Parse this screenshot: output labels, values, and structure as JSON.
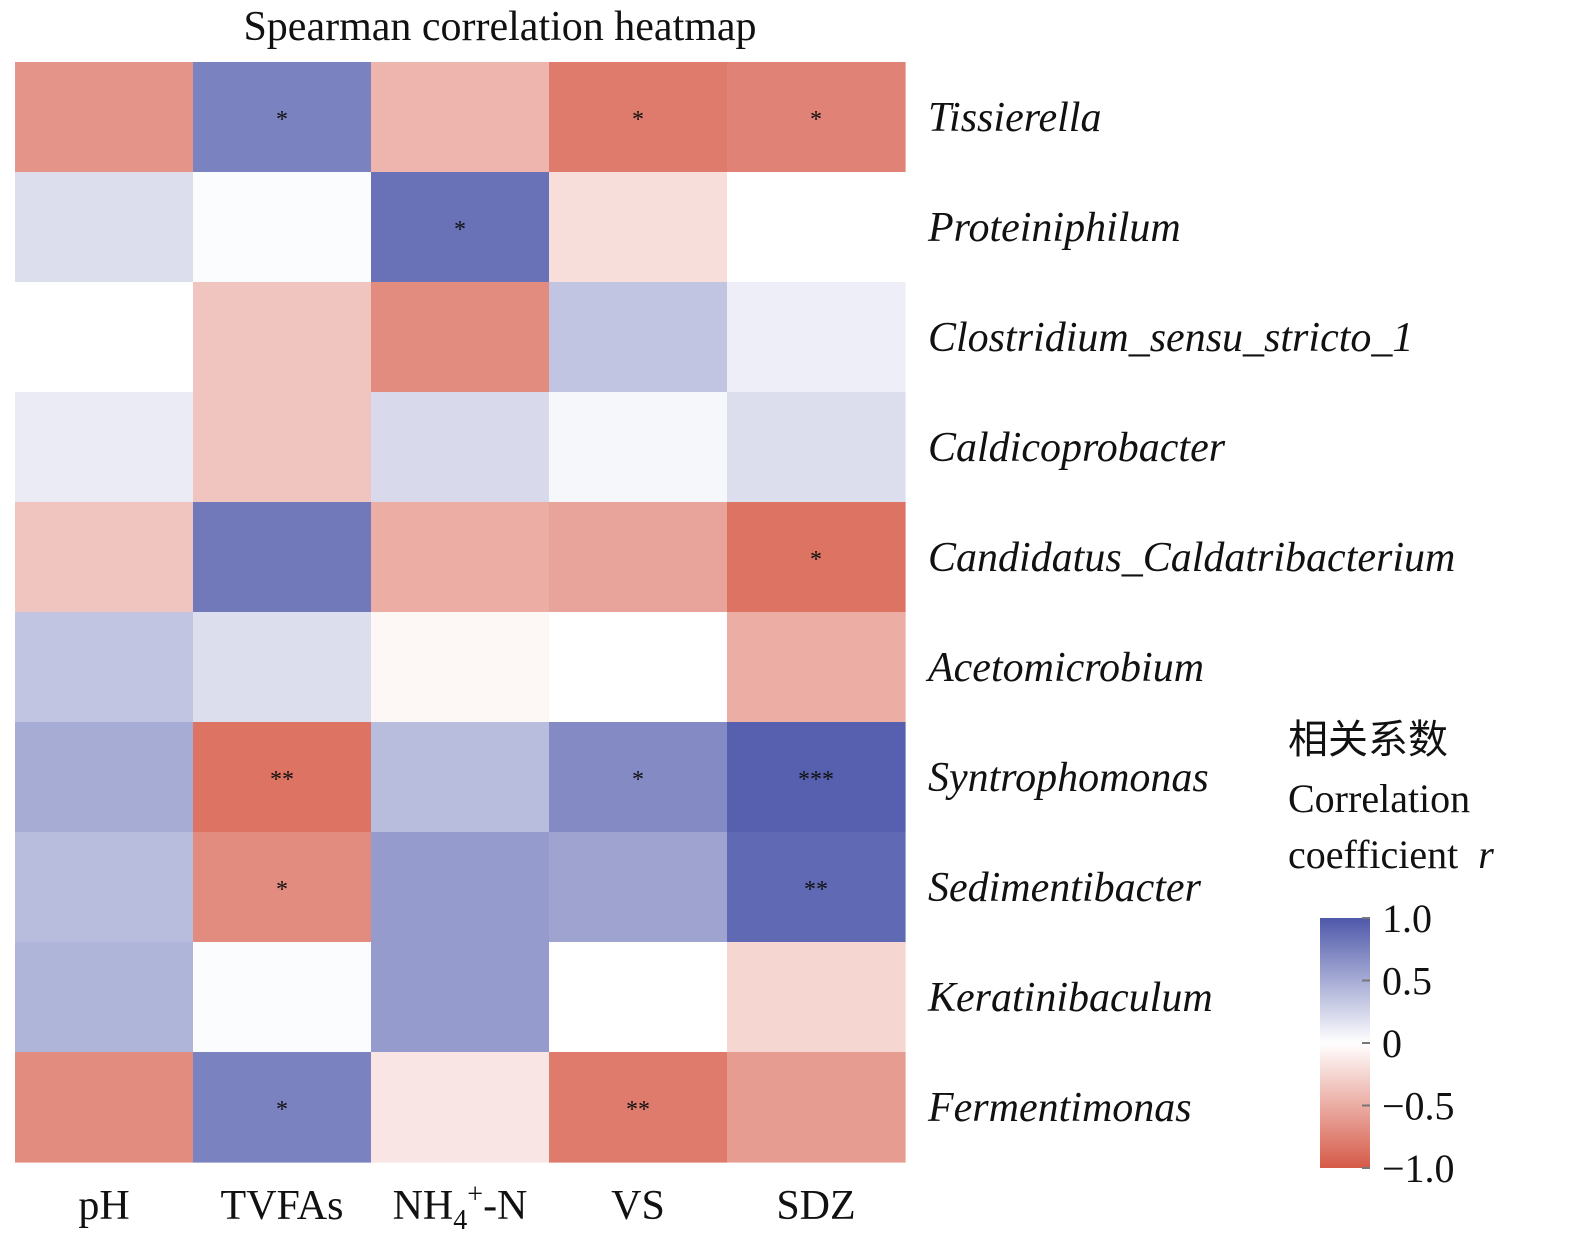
{
  "chart_data": {
    "type": "heatmap",
    "title": "Spearman correlation heatmap",
    "x_categories": [
      "pH",
      "TVFAs",
      "NH4+-N",
      "VS",
      "SDZ"
    ],
    "y_categories": [
      "Tissierella",
      "Proteiniphilum",
      "Clostridium_sensu_stricto_1",
      "Caldicoprobacter",
      "Candidatus_Caldatribacterium",
      "Acetomicrobium",
      "Syntrophomonas",
      "Sedimentibacter",
      "Keratinibaculum",
      "Fermentimonas"
    ],
    "values": [
      [
        -0.65,
        0.75,
        -0.45,
        -0.8,
        -0.75
      ],
      [
        0.2,
        0.02,
        0.85,
        -0.2,
        0.0
      ],
      [
        0.0,
        -0.35,
        -0.7,
        0.35,
        0.1
      ],
      [
        0.12,
        -0.35,
        0.22,
        0.05,
        0.2
      ],
      [
        -0.35,
        0.8,
        -0.5,
        -0.55,
        -0.85
      ],
      [
        0.35,
        0.2,
        -0.05,
        0.0,
        -0.5
      ],
      [
        0.5,
        -0.85,
        0.4,
        0.7,
        0.95
      ],
      [
        0.4,
        -0.7,
        0.6,
        0.55,
        0.9
      ],
      [
        0.45,
        0.02,
        0.6,
        0.0,
        -0.25
      ],
      [
        -0.7,
        0.75,
        -0.15,
        -0.8,
        -0.6
      ]
    ],
    "significance": [
      [
        "",
        "*",
        "",
        "*",
        "*"
      ],
      [
        "",
        "",
        "*",
        "",
        ""
      ],
      [
        "",
        "",
        "",
        "",
        ""
      ],
      [
        "",
        "",
        "",
        "",
        ""
      ],
      [
        "",
        "",
        "",
        "",
        "*"
      ],
      [
        "",
        "",
        "",
        "",
        ""
      ],
      [
        "",
        "**",
        "",
        "*",
        "***"
      ],
      [
        "",
        "*",
        "",
        "",
        "**"
      ],
      [
        "",
        "",
        "",
        "",
        ""
      ],
      [
        "",
        "*",
        "",
        "**",
        ""
      ]
    ],
    "colorbar": {
      "title_cn": "相关系数",
      "title_en_line1": "Correlation",
      "title_en_line2": "coefficient",
      "title_en_var": "r",
      "ticks": [
        {
          "value": 1.0,
          "label": "1.0"
        },
        {
          "value": 0.5,
          "label": "0.5"
        },
        {
          "value": 0.0,
          "label": "0"
        },
        {
          "value": -0.5,
          "label": "−0.5"
        },
        {
          "value": -1.0,
          "label": "−1.0"
        }
      ],
      "range": [
        -1,
        1
      ]
    },
    "colors": {
      "positive": "#4e58aa",
      "zero": "#ffffff",
      "negative": "#d65a48",
      "significance_mark": "#111111",
      "text": "#111111"
    }
  }
}
